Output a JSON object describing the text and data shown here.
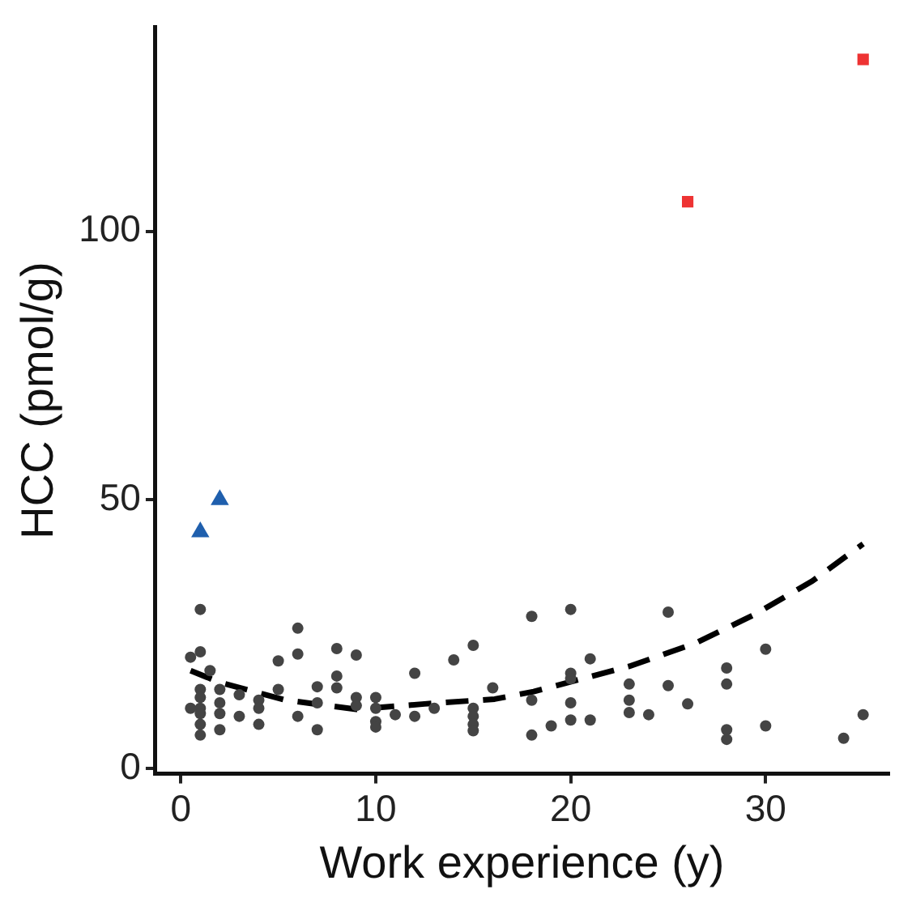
{
  "chart_data": {
    "type": "scatter",
    "xlabel": "Work experience (y)",
    "ylabel": "HCC (pmol/g)",
    "xlim": [
      -1.3,
      36.3
    ],
    "xticks": [
      0,
      10,
      20,
      30
    ],
    "ylim": [
      -1,
      138
    ],
    "yticks": [
      0,
      50,
      100
    ],
    "grid": false,
    "legend": false,
    "series": [
      {
        "color": "#444444",
        "marker": "circle",
        "x": [
          1,
          1,
          1,
          1,
          1,
          1,
          1,
          1,
          0.5,
          0.5,
          1.5,
          2,
          2,
          2,
          2,
          3,
          3,
          4,
          4,
          4,
          5,
          5,
          6,
          6,
          6,
          7,
          7,
          7,
          8,
          8,
          8,
          9,
          9,
          9,
          10,
          10,
          10,
          10,
          11,
          12,
          12,
          13,
          14,
          15,
          15,
          15,
          15,
          15,
          16,
          18,
          18,
          18,
          19,
          20,
          20,
          20,
          20,
          20,
          21,
          21,
          23,
          23,
          23,
          24,
          25,
          25,
          26,
          28,
          28,
          28,
          28,
          30,
          30,
          34,
          35
        ],
        "values": [
          29.6,
          21.7,
          14.7,
          13.2,
          11.2,
          10.2,
          8.2,
          6.2,
          20.7,
          11.2,
          18.2,
          14.7,
          12.2,
          10.2,
          7.2,
          13.7,
          9.7,
          12.7,
          11.2,
          8.2,
          20.0,
          14.7,
          26.1,
          21.3,
          9.7,
          15.2,
          12.2,
          7.2,
          22.3,
          17.2,
          15.0,
          21.1,
          13.2,
          11.7,
          13.2,
          11.2,
          8.7,
          7.7,
          10.0,
          17.7,
          9.7,
          11.2,
          20.2,
          22.9,
          11.2,
          9.7,
          8.2,
          7.0,
          15.0,
          28.3,
          12.7,
          6.2,
          7.9,
          29.6,
          17.7,
          16.7,
          12.2,
          9.0,
          20.4,
          9.0,
          15.7,
          12.7,
          10.4,
          10.0,
          29.1,
          15.4,
          12.0,
          18.7,
          15.7,
          7.2,
          5.4,
          22.2,
          7.9,
          5.6,
          10.0
        ]
      },
      {
        "color": "#1f5fad",
        "marker": "triangle",
        "x": [
          1,
          2
        ],
        "values": [
          44,
          50
        ]
      },
      {
        "color": "#ee3333",
        "marker": "square",
        "x": [
          26,
          35
        ],
        "values": [
          105.5,
          132
        ]
      },
      {
        "type": "line",
        "color": "#000000",
        "line_style": "dashed",
        "x": [
          0.5,
          2,
          5.4,
          9,
          12.5,
          16.1,
          18.1,
          23,
          26.4,
          29.4,
          32.4,
          35
        ],
        "values": [
          18.2,
          16.0,
          12.7,
          11.0,
          12.0,
          12.9,
          14.3,
          19.0,
          23.3,
          28.6,
          34.9,
          41.8
        ]
      }
    ]
  }
}
